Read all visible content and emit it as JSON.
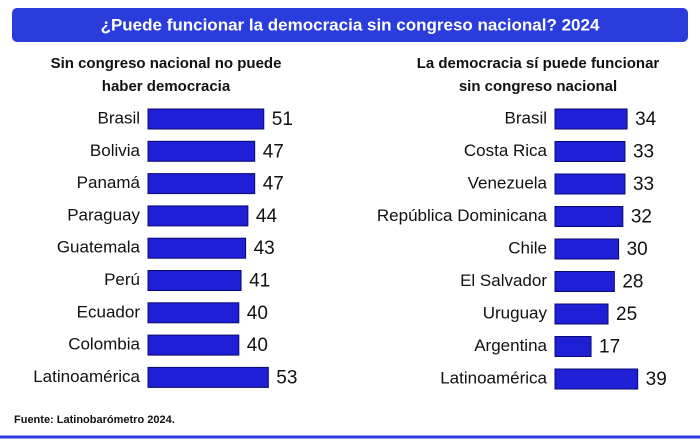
{
  "title": "¿Puede funcionar la democracia sin congreso nacional? 2024",
  "source": "Fuente: Latinobarómetro 2024.",
  "chart_data": [
    {
      "type": "bar",
      "orientation": "horizontal",
      "subtitle": [
        "Sin congreso nacional no puede",
        "haber democracia"
      ],
      "categories": [
        "Brasil",
        "Bolivia",
        "Panamá",
        "Paraguay",
        "Guatemala",
        "Perú",
        "Ecuador",
        "Colombia",
        "Latinoamérica"
      ],
      "values": [
        51,
        47,
        47,
        44,
        43,
        41,
        40,
        40,
        53
      ],
      "color": "#1f1fd6"
    },
    {
      "type": "bar",
      "orientation": "horizontal",
      "subtitle": [
        "La democracia sí puede funcionar",
        "sin congreso nacional"
      ],
      "categories": [
        "Brasil",
        "Costa Rica",
        "Venezuela",
        "República Dominicana",
        "Chile",
        "El Salvador",
        "Uruguay",
        "Argentina",
        "Latinoamérica"
      ],
      "values": [
        34,
        33,
        33,
        32,
        30,
        28,
        25,
        17,
        39
      ],
      "color": "#1f1fd6"
    }
  ]
}
